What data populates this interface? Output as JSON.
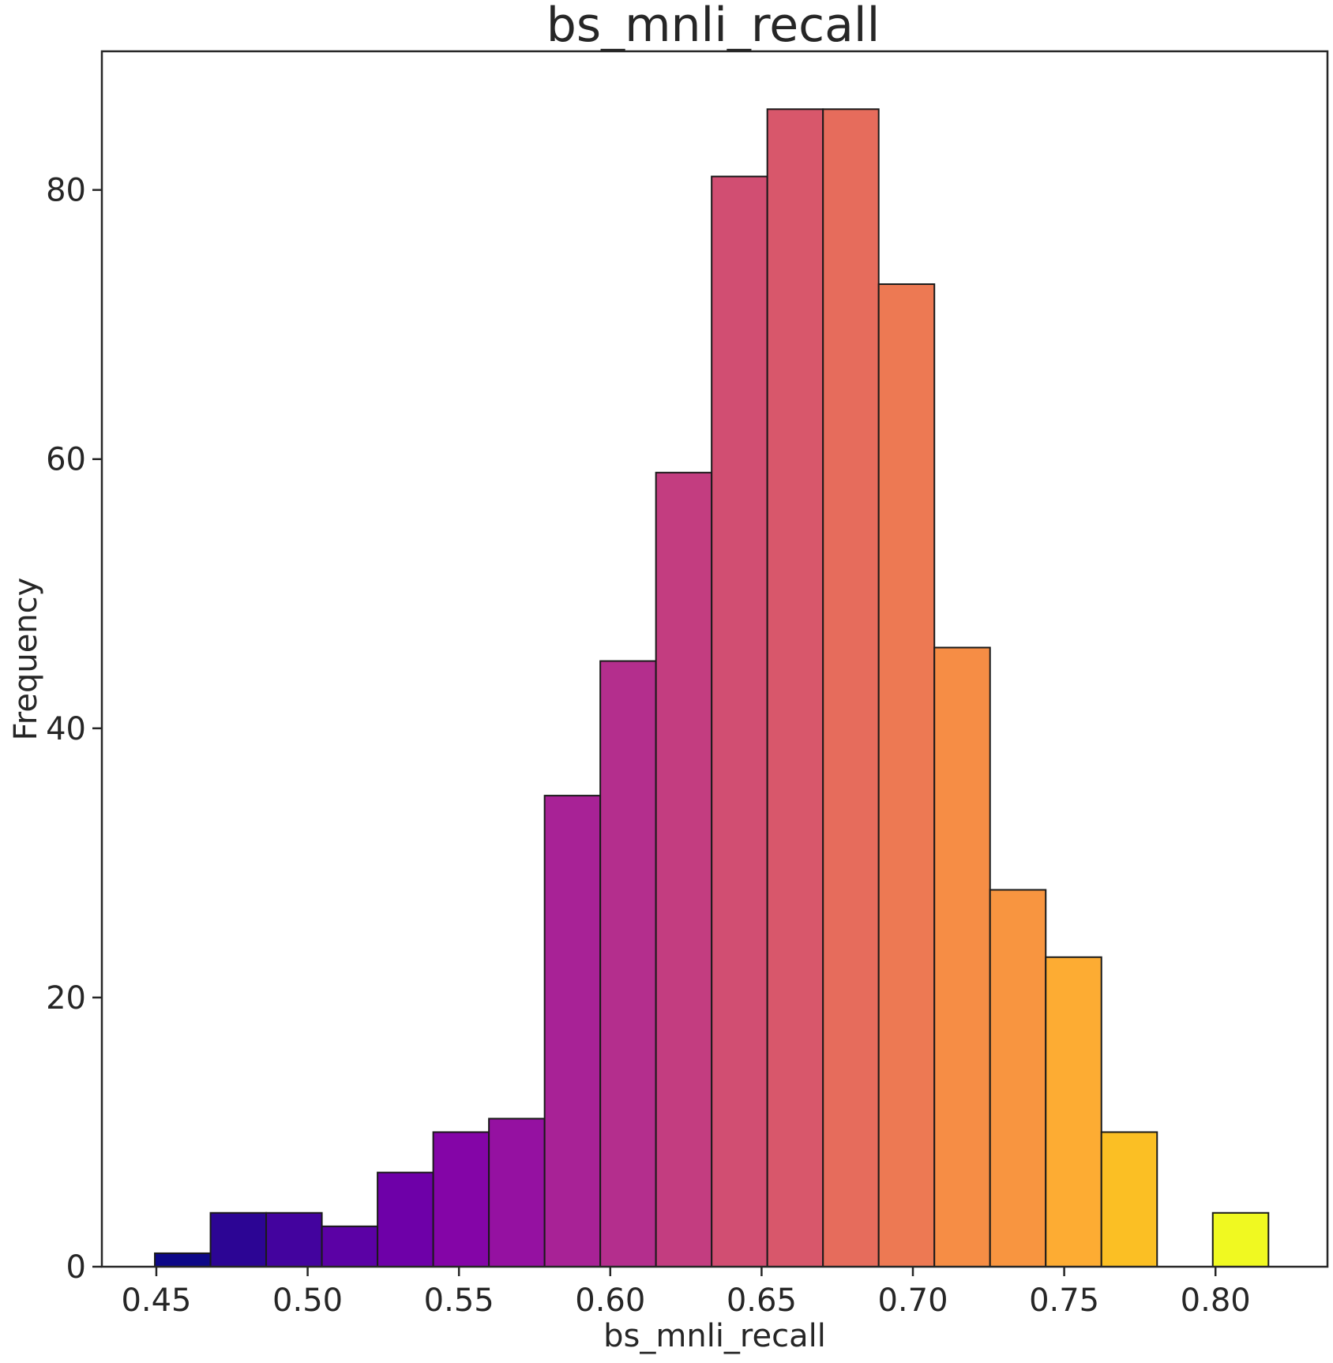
{
  "chart_data": {
    "type": "bar",
    "title": "bs_mnli_recall",
    "xlabel": "bs_mnli_recall",
    "ylabel": "Frequency",
    "xlim": [
      0.432,
      0.837
    ],
    "ylim": [
      0,
      90.3
    ],
    "grid": false,
    "x_ticks": [
      "0.45",
      "0.50",
      "0.55",
      "0.60",
      "0.65",
      "0.70",
      "0.75",
      "0.80"
    ],
    "x_tick_values": [
      0.45,
      0.5,
      0.55,
      0.6,
      0.65,
      0.7,
      0.75,
      0.8
    ],
    "y_ticks": [
      "0",
      "20",
      "40",
      "60",
      "80"
    ],
    "y_tick_values": [
      0,
      20,
      40,
      60,
      80
    ],
    "bin_edges": [
      0.4495,
      0.4679,
      0.4863,
      0.5047,
      0.5231,
      0.5415,
      0.5599,
      0.5783,
      0.5967,
      0.6151,
      0.6335,
      0.6519,
      0.6703,
      0.6887,
      0.7071,
      0.7255,
      0.7439,
      0.7623,
      0.7807,
      0.7991,
      0.8175
    ],
    "values": [
      1,
      4,
      4,
      3,
      7,
      10,
      11,
      35,
      45,
      59,
      81,
      86,
      86,
      73,
      46,
      28,
      23,
      10,
      0,
      4
    ],
    "colors": [
      "#0d0887",
      "#2c0594",
      "#43039e",
      "#5b01a5",
      "#6e00a8",
      "#8405a7",
      "#9511a1",
      "#a82296",
      "#b42e8d",
      "#c33d80",
      "#d14e72",
      "#d8576b",
      "#e66c5c",
      "#ed7953",
      "#f68d45",
      "#f89540",
      "#fdac33",
      "#fbbf24",
      "#fccd25",
      "#f0f921"
    ]
  }
}
